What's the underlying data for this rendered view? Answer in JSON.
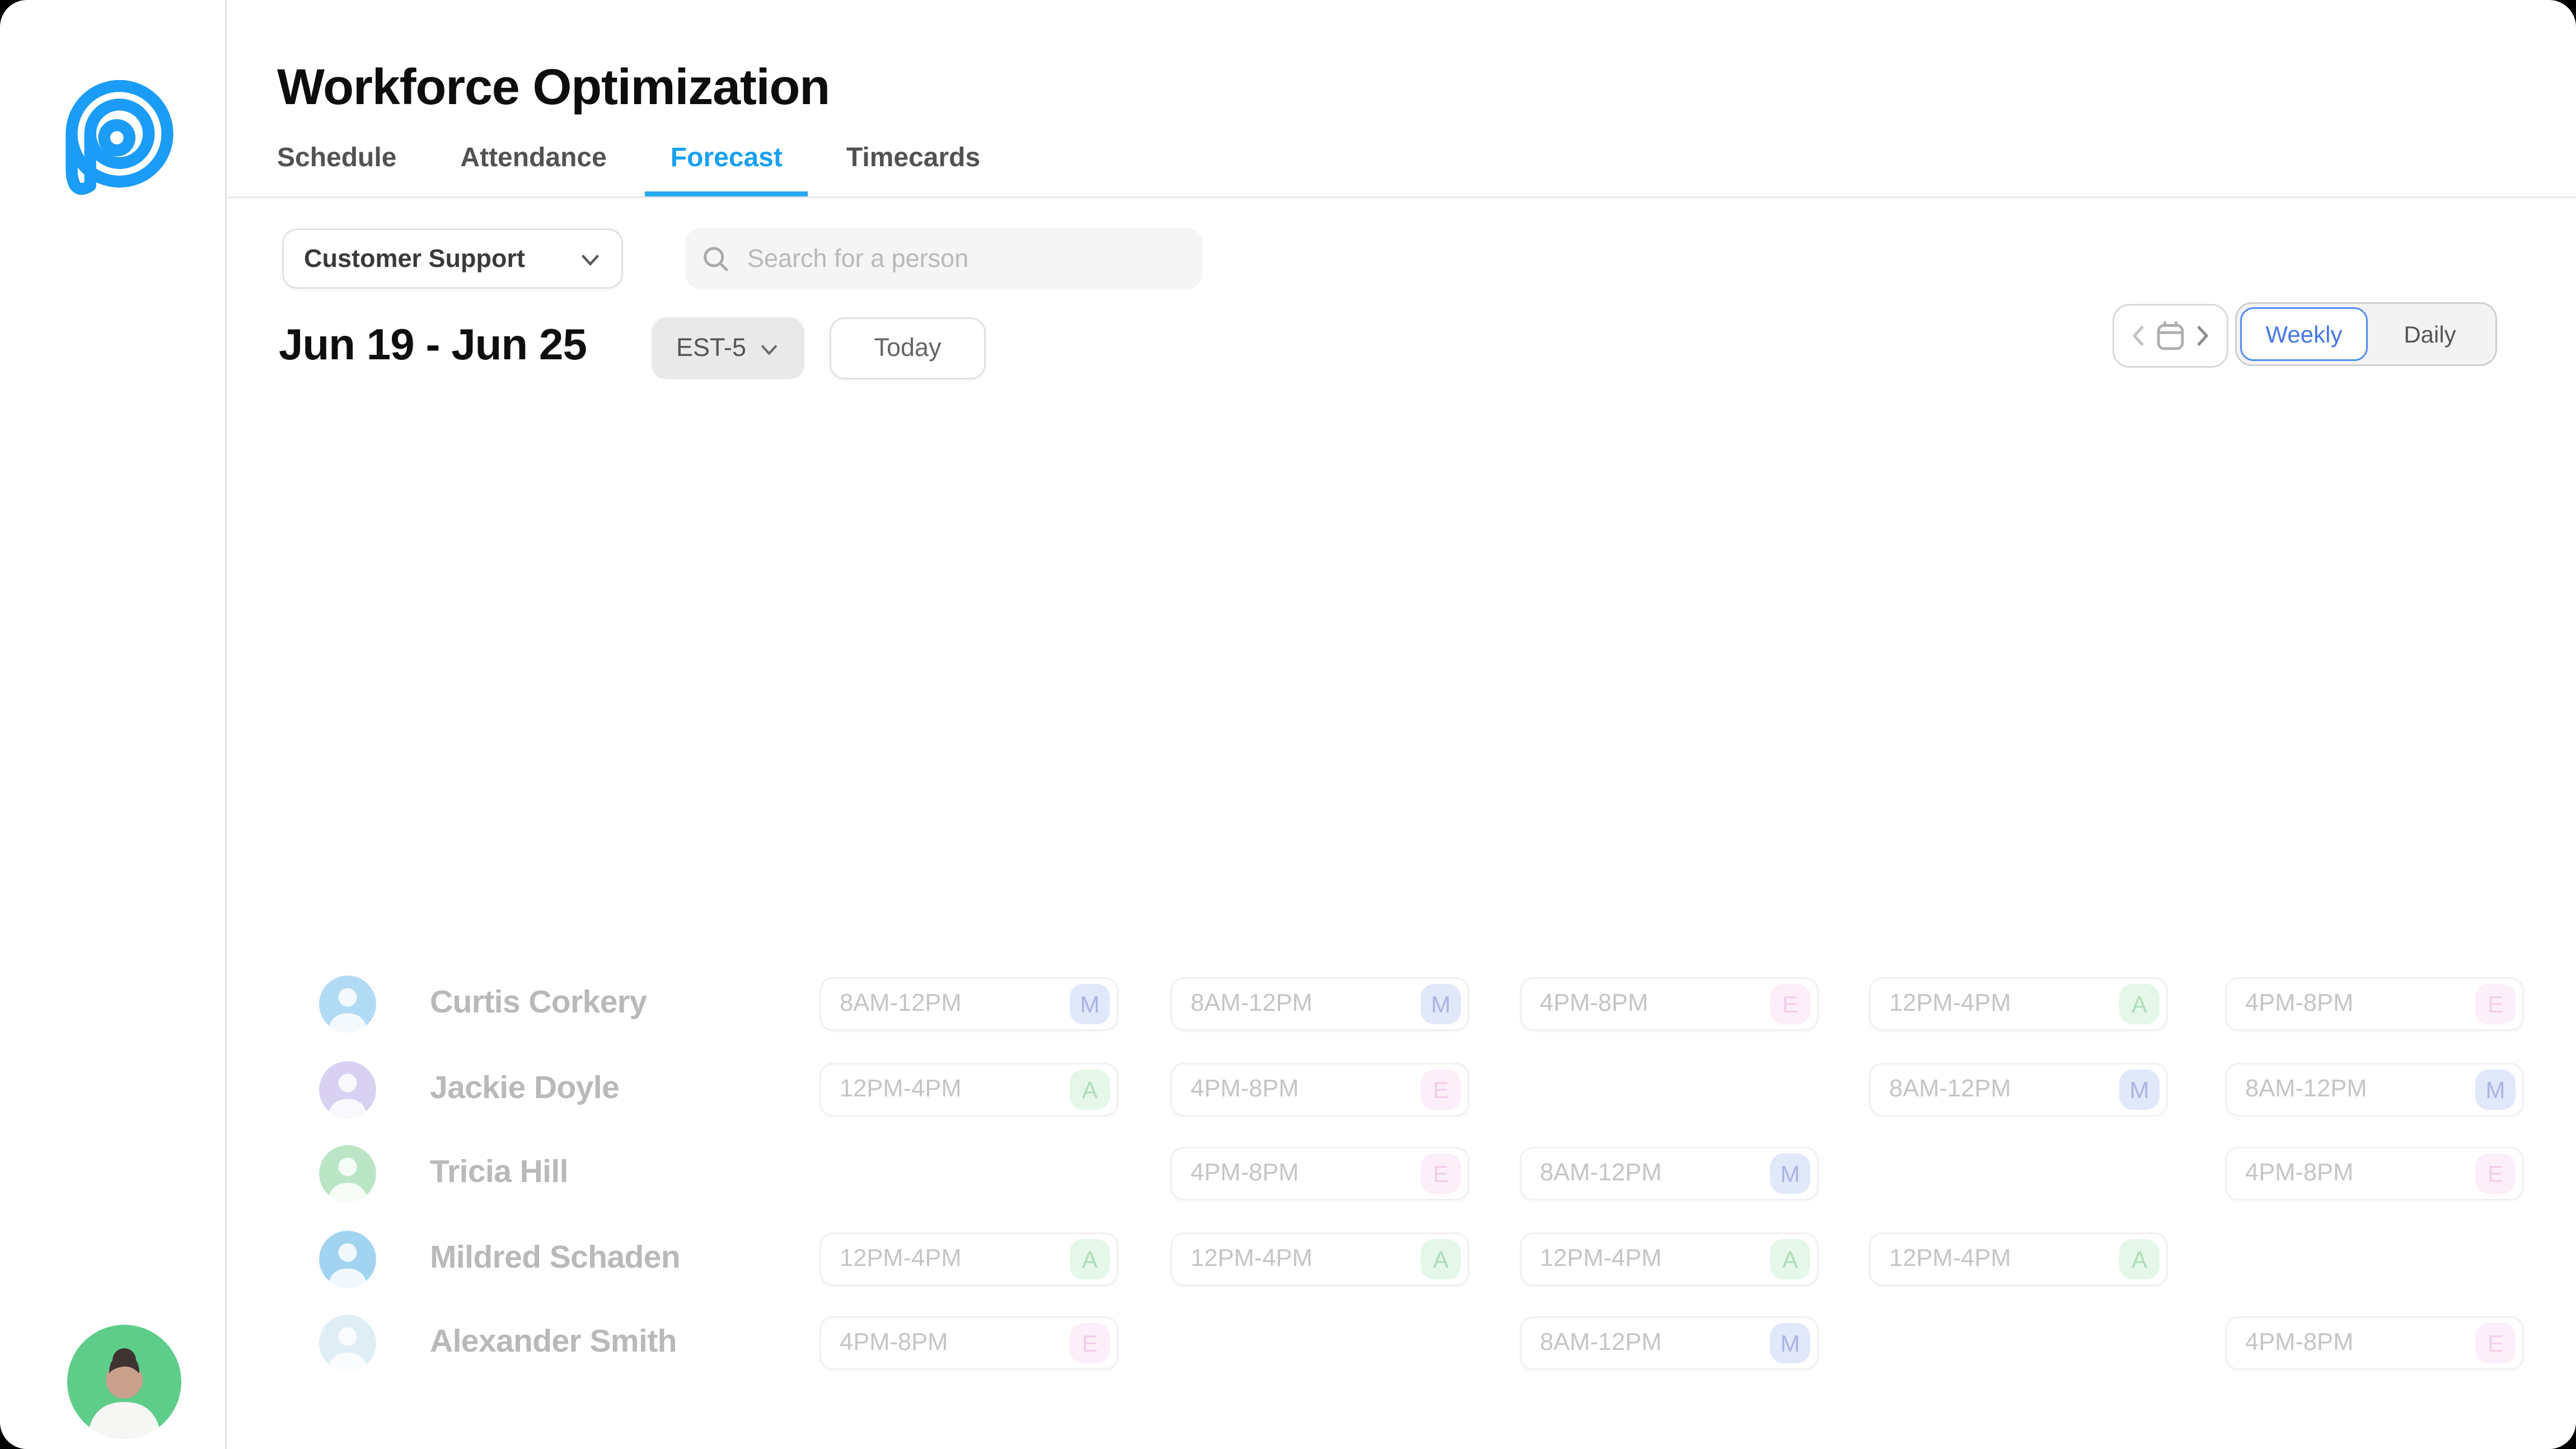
{
  "header": {
    "title": "Workforce Optimization",
    "tabs": [
      {
        "label": "Schedule",
        "active": false
      },
      {
        "label": "Attendance",
        "active": false
      },
      {
        "label": "Forecast",
        "active": true
      },
      {
        "label": "Timecards",
        "active": false
      }
    ]
  },
  "filters": {
    "team_selector": {
      "value": "Customer Support"
    },
    "search": {
      "placeholder": "Search for a person",
      "value": ""
    }
  },
  "toolbar": {
    "date_range": "Jun 19 - Jun 25",
    "timezone": "EST-5",
    "today_label": "Today",
    "view_toggle": {
      "options": [
        "Weekly",
        "Daily"
      ],
      "selected": "Weekly"
    }
  },
  "colors": {
    "accent_blue": "#18a0f2",
    "toggle_selected_blue": "#4577e8",
    "logo_blue": "#1b9cf6",
    "user_avatar_green": "#5ecd8a"
  },
  "shift_types": {
    "M": {
      "badge_bg": "#e1e8fa",
      "badge_text": "#aab4e3"
    },
    "A": {
      "badge_bg": "#e4f7e9",
      "badge_text": "#aedcb8"
    },
    "E": {
      "badge_bg": "#fceff9",
      "badge_text": "#f3cdea"
    }
  },
  "schedule": {
    "rows": [
      {
        "name": "Curtis Corkery",
        "avatar_color": "#9ed2f2",
        "shifts": [
          {
            "time": "8AM-12PM",
            "type": "M"
          },
          {
            "time": "8AM-12PM",
            "type": "M"
          },
          {
            "time": "4PM-8PM",
            "type": "E"
          },
          {
            "time": "12PM-4PM",
            "type": "A"
          },
          {
            "time": "4PM-8PM",
            "type": "E"
          }
        ]
      },
      {
        "name": "Jackie Doyle",
        "avatar_color": "#cfc6ef",
        "shifts": [
          {
            "time": "12PM-4PM",
            "type": "A"
          },
          {
            "time": "4PM-8PM",
            "type": "E"
          },
          null,
          {
            "time": "8AM-12PM",
            "type": "M"
          },
          {
            "time": "8AM-12PM",
            "type": "M"
          }
        ]
      },
      {
        "name": "Tricia Hill",
        "avatar_color": "#abe0b9",
        "shifts": [
          null,
          {
            "time": "4PM-8PM",
            "type": "E"
          },
          {
            "time": "8AM-12PM",
            "type": "M"
          },
          null,
          {
            "time": "4PM-8PM",
            "type": "E"
          }
        ]
      },
      {
        "name": "Mildred Schaden",
        "avatar_color": "#8ccaf0",
        "shifts": [
          {
            "time": "12PM-4PM",
            "type": "A"
          },
          {
            "time": "12PM-4PM",
            "type": "A"
          },
          {
            "time": "12PM-4PM",
            "type": "A"
          },
          {
            "time": "12PM-4PM",
            "type": "A"
          },
          null
        ]
      },
      {
        "name": "Alexander Smith",
        "avatar_color": "#d8eaf3",
        "shifts": [
          {
            "time": "4PM-8PM",
            "type": "E"
          },
          null,
          {
            "time": "8AM-12PM",
            "type": "M"
          },
          null,
          {
            "time": "4PM-8PM",
            "type": "E"
          }
        ]
      }
    ]
  }
}
